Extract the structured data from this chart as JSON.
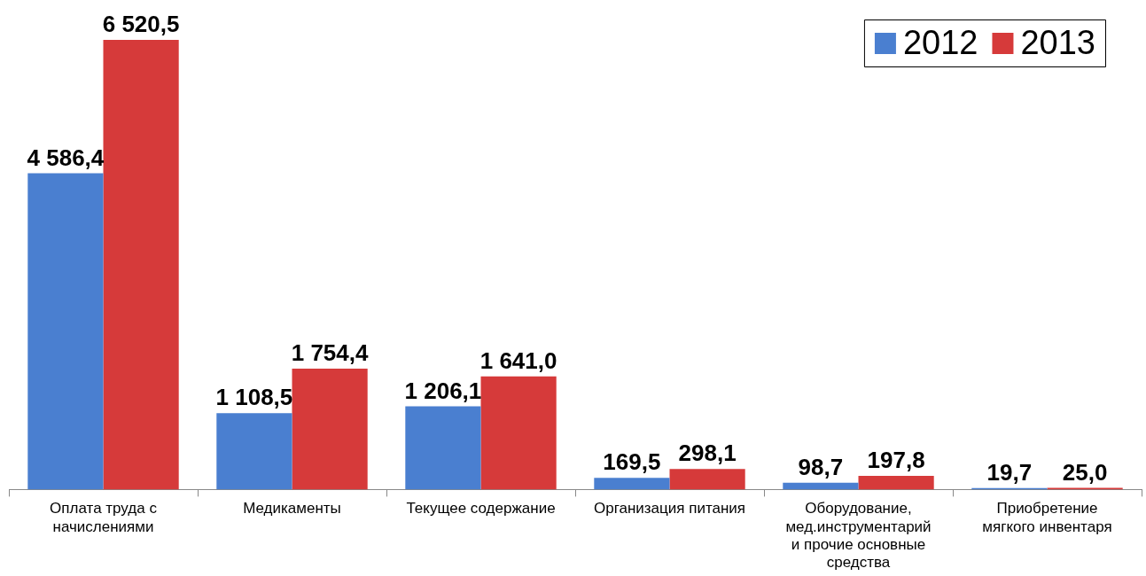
{
  "chart_data": {
    "type": "bar",
    "categories": [
      "Оплата труда с начислениями",
      "Медикаменты",
      "Текущее содержание",
      "Организация питания",
      "Оборудование, мед.инструментарий и прочие основные средства",
      "Приобретение мягкого инвентаря"
    ],
    "series": [
      {
        "name": "2012",
        "color": "#4a7fd0",
        "values": [
          4586.4,
          1108.5,
          1206.1,
          169.5,
          98.7,
          19.7
        ],
        "value_labels": [
          "4 586,4",
          "1 108,5",
          "1 206,1",
          "169,5",
          "98,7",
          "19,7"
        ]
      },
      {
        "name": "2013",
        "color": "#d63a3a",
        "values": [
          6520.5,
          1754.4,
          1641.0,
          298.1,
          197.8,
          25.0
        ],
        "value_labels": [
          "6 520,5",
          "1 754,4",
          "1 641,0",
          "298,1",
          "197,8",
          "25,0"
        ]
      }
    ],
    "legend": "top right",
    "grid": false
  }
}
